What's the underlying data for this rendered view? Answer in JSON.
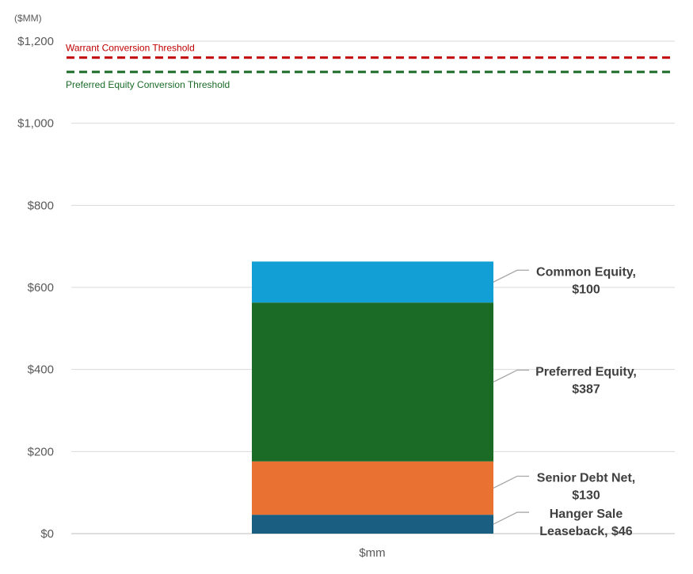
{
  "chart_data": {
    "type": "bar",
    "stacked": true,
    "unit_label": "($MM)",
    "categories": [
      "$mm"
    ],
    "ylim": [
      0,
      1200
    ],
    "yticks": [
      0,
      200,
      400,
      600,
      800,
      1000,
      1200
    ],
    "ytick_labels": [
      "$0",
      "$200",
      "$400",
      "$600",
      "$800",
      "$1,000",
      "$1,200"
    ],
    "grid": true,
    "series": [
      {
        "name": "Hanger Sale Leaseback",
        "value": 46,
        "color": "#1A5E82",
        "label_lines": [
          "Hanger Sale",
          "Leaseback, $46"
        ]
      },
      {
        "name": "Senior Debt Net",
        "value": 130,
        "color": "#E97132",
        "label_lines": [
          "Senior Debt Net,",
          "$130"
        ]
      },
      {
        "name": "Preferred Equity",
        "value": 387,
        "color": "#1B6B27",
        "label_lines": [
          "Preferred Equity,",
          "$387"
        ]
      },
      {
        "name": "Common Equity",
        "value": 100,
        "color": "#119FD6",
        "label_lines": [
          "Common Equity,",
          "$100"
        ]
      }
    ],
    "thresholds": [
      {
        "name": "Warrant Conversion Threshold",
        "value": 1160,
        "color": "#C00000"
      },
      {
        "name": "Preferred Equity Conversion Threshold",
        "value": 1125,
        "color": "#1B6B27"
      }
    ]
  }
}
